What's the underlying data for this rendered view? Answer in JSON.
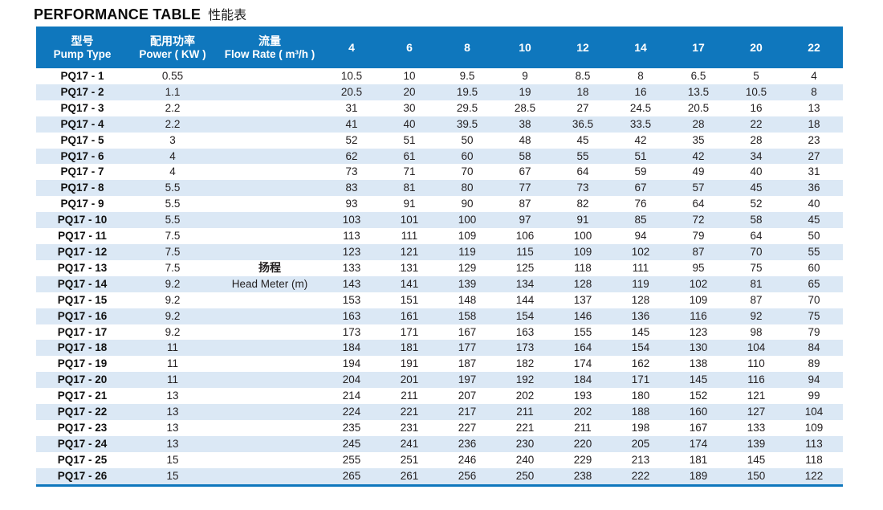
{
  "title": {
    "en": "PERFORMANCE TABLE",
    "zh": "性能表"
  },
  "colors": {
    "header_blue": "#0f77bd",
    "alt_row_blue": "#dbe8f5",
    "text_dark": "#231f20"
  },
  "table": {
    "headers": {
      "pump_type": {
        "zh": "型号",
        "en": "Pump Type"
      },
      "power": {
        "zh": "配用功率",
        "en": "Power ( KW )"
      },
      "flow_rate": {
        "zh": "流量",
        "en": "Flow Rate ( m³/h )"
      },
      "flow_columns": [
        "4",
        "6",
        "8",
        "10",
        "12",
        "14",
        "17",
        "20",
        "22"
      ]
    },
    "head_label": {
      "zh": "扬程",
      "en": "Head Meter (m)"
    },
    "rows": [
      {
        "type": "PQ17 - 1",
        "power": "0.55",
        "flow_note": "",
        "values": [
          "10.5",
          "10",
          "9.5",
          "9",
          "8.5",
          "8",
          "6.5",
          "5",
          "4"
        ]
      },
      {
        "type": "PQ17 - 2",
        "power": "1.1",
        "flow_note": "",
        "values": [
          "20.5",
          "20",
          "19.5",
          "19",
          "18",
          "16",
          "13.5",
          "10.5",
          "8"
        ]
      },
      {
        "type": "PQ17 - 3",
        "power": "2.2",
        "flow_note": "",
        "values": [
          "31",
          "30",
          "29.5",
          "28.5",
          "27",
          "24.5",
          "20.5",
          "16",
          "13"
        ]
      },
      {
        "type": "PQ17 - 4",
        "power": "2.2",
        "flow_note": "",
        "values": [
          "41",
          "40",
          "39.5",
          "38",
          "36.5",
          "33.5",
          "28",
          "22",
          "18"
        ]
      },
      {
        "type": "PQ17 - 5",
        "power": "3",
        "flow_note": "",
        "values": [
          "52",
          "51",
          "50",
          "48",
          "45",
          "42",
          "35",
          "28",
          "23"
        ]
      },
      {
        "type": "PQ17 - 6",
        "power": "4",
        "flow_note": "",
        "values": [
          "62",
          "61",
          "60",
          "58",
          "55",
          "51",
          "42",
          "34",
          "27"
        ]
      },
      {
        "type": "PQ17 - 7",
        "power": "4",
        "flow_note": "",
        "values": [
          "73",
          "71",
          "70",
          "67",
          "64",
          "59",
          "49",
          "40",
          "31"
        ]
      },
      {
        "type": "PQ17 - 8",
        "power": "5.5",
        "flow_note": "",
        "values": [
          "83",
          "81",
          "80",
          "77",
          "73",
          "67",
          "57",
          "45",
          "36"
        ]
      },
      {
        "type": "PQ17 - 9",
        "power": "5.5",
        "flow_note": "",
        "values": [
          "93",
          "91",
          "90",
          "87",
          "82",
          "76",
          "64",
          "52",
          "40"
        ]
      },
      {
        "type": "PQ17 - 10",
        "power": "5.5",
        "flow_note": "",
        "values": [
          "103",
          "101",
          "100",
          "97",
          "91",
          "85",
          "72",
          "58",
          "45"
        ]
      },
      {
        "type": "PQ17 - 11",
        "power": "7.5",
        "flow_note": "",
        "values": [
          "113",
          "111",
          "109",
          "106",
          "100",
          "94",
          "79",
          "64",
          "50"
        ]
      },
      {
        "type": "PQ17 - 12",
        "power": "7.5",
        "flow_note": "",
        "values": [
          "123",
          "121",
          "119",
          "115",
          "109",
          "102",
          "87",
          "70",
          "55"
        ]
      },
      {
        "type": "PQ17 - 13",
        "power": "7.5",
        "flow_note": "扬程",
        "values": [
          "133",
          "131",
          "129",
          "125",
          "118",
          "111",
          "95",
          "75",
          "60"
        ]
      },
      {
        "type": "PQ17 - 14",
        "power": "9.2",
        "flow_note": "Head Meter (m)",
        "values": [
          "143",
          "141",
          "139",
          "134",
          "128",
          "119",
          "102",
          "81",
          "65"
        ]
      },
      {
        "type": "PQ17 - 15",
        "power": "9.2",
        "flow_note": "",
        "values": [
          "153",
          "151",
          "148",
          "144",
          "137",
          "128",
          "109",
          "87",
          "70"
        ]
      },
      {
        "type": "PQ17 - 16",
        "power": "9.2",
        "flow_note": "",
        "values": [
          "163",
          "161",
          "158",
          "154",
          "146",
          "136",
          "116",
          "92",
          "75"
        ]
      },
      {
        "type": "PQ17 - 17",
        "power": "9.2",
        "flow_note": "",
        "values": [
          "173",
          "171",
          "167",
          "163",
          "155",
          "145",
          "123",
          "98",
          "79"
        ]
      },
      {
        "type": "PQ17 - 18",
        "power": "11",
        "flow_note": "",
        "values": [
          "184",
          "181",
          "177",
          "173",
          "164",
          "154",
          "130",
          "104",
          "84"
        ]
      },
      {
        "type": "PQ17 - 19",
        "power": "11",
        "flow_note": "",
        "values": [
          "194",
          "191",
          "187",
          "182",
          "174",
          "162",
          "138",
          "110",
          "89"
        ]
      },
      {
        "type": "PQ17 - 20",
        "power": "11",
        "flow_note": "",
        "values": [
          "204",
          "201",
          "197",
          "192",
          "184",
          "171",
          "145",
          "116",
          "94"
        ]
      },
      {
        "type": "PQ17 - 21",
        "power": "13",
        "flow_note": "",
        "values": [
          "214",
          "211",
          "207",
          "202",
          "193",
          "180",
          "152",
          "121",
          "99"
        ]
      },
      {
        "type": "PQ17 - 22",
        "power": "13",
        "flow_note": "",
        "values": [
          "224",
          "221",
          "217",
          "211",
          "202",
          "188",
          "160",
          "127",
          "104"
        ]
      },
      {
        "type": "PQ17 - 23",
        "power": "13",
        "flow_note": "",
        "values": [
          "235",
          "231",
          "227",
          "221",
          "211",
          "198",
          "167",
          "133",
          "109"
        ]
      },
      {
        "type": "PQ17 - 24",
        "power": "13",
        "flow_note": "",
        "values": [
          "245",
          "241",
          "236",
          "230",
          "220",
          "205",
          "174",
          "139",
          "113"
        ]
      },
      {
        "type": "PQ17 - 25",
        "power": "15",
        "flow_note": "",
        "values": [
          "255",
          "251",
          "246",
          "240",
          "229",
          "213",
          "181",
          "145",
          "118"
        ]
      },
      {
        "type": "PQ17 - 26",
        "power": "15",
        "flow_note": "",
        "values": [
          "265",
          "261",
          "256",
          "250",
          "238",
          "222",
          "189",
          "150",
          "122"
        ]
      }
    ]
  }
}
